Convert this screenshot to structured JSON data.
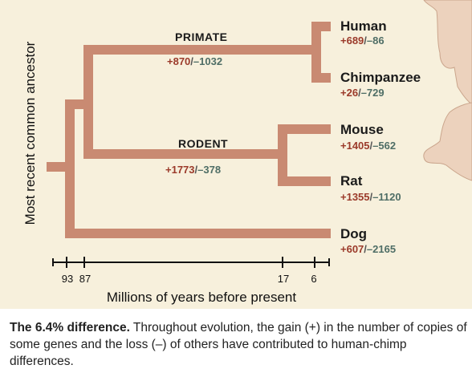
{
  "figure": {
    "y_axis_title": "Most recent common ancestor",
    "x_axis_title": "Millions of years before present",
    "ticks": [
      "93",
      "87",
      "17",
      "6"
    ],
    "branches": {
      "primate": {
        "label": "PRIMATE",
        "gain": "+870",
        "loss": "–1032"
      },
      "rodent": {
        "label": "RODENT",
        "gain": "+1773",
        "loss": "–378"
      }
    },
    "taxa": [
      {
        "name": "Human",
        "gain": "+689",
        "loss": "–86"
      },
      {
        "name": "Chimpanzee",
        "gain": "+26",
        "loss": "–729"
      },
      {
        "name": "Mouse",
        "gain": "+1405",
        "loss": "–562"
      },
      {
        "name": "Rat",
        "gain": "+1355",
        "loss": "–1120"
      },
      {
        "name": "Dog",
        "gain": "+607",
        "loss": "–2165"
      }
    ],
    "separator": "/",
    "colors": {
      "tree": "#c98a72",
      "gain": "#9b3a2a",
      "loss": "#4f6e66",
      "panel": "#f7f0dc"
    }
  },
  "caption": {
    "title": "The 6.4% difference.",
    "text": " Throughout evolution, the gain (+) in the number of copies of some genes and the loss (–) of others have contributed to human-chimp differences."
  }
}
